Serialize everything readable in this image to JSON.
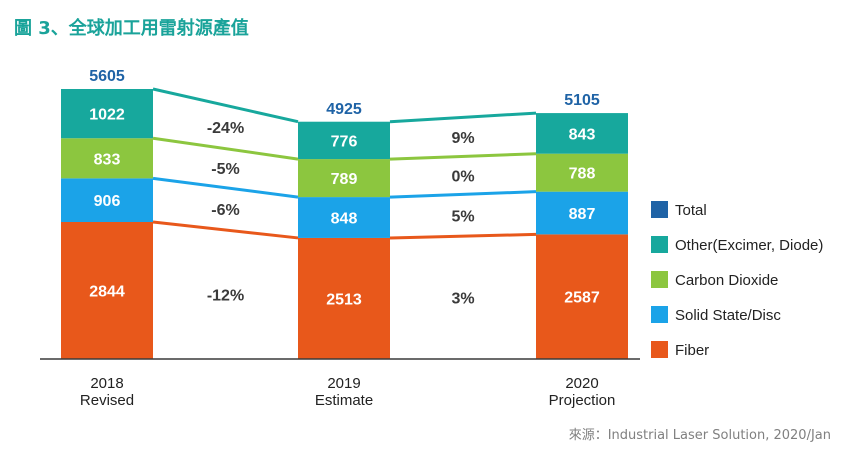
{
  "figure_title": "圖 3、全球加工用雷射源產值",
  "source": "來源：Industrial Laser Solution, 2020/Jan",
  "colors": {
    "title": "#1aa39a",
    "total_label": "#1f63a6",
    "segment_text": "#ffffff",
    "growth_text": "#3a3a3a",
    "axis": "#3a3a3a"
  },
  "chart_data": {
    "type": "bar",
    "stacked": true,
    "categories": [
      [
        "2018",
        "Revised"
      ],
      [
        "2019",
        "Estimate"
      ],
      [
        "2020",
        "Projection"
      ]
    ],
    "series": [
      {
        "name": "Fiber",
        "color": "#e8581b",
        "values": [
          2844,
          2513,
          2587
        ]
      },
      {
        "name": "Solid State/Disc",
        "color": "#1ba3e8",
        "values": [
          906,
          848,
          887
        ]
      },
      {
        "name": "Carbon Dioxide",
        "color": "#8cc63f",
        "values": [
          833,
          789,
          788
        ]
      },
      {
        "name": "Other(Excimer, Diode)",
        "color": "#17a89d",
        "values": [
          1022,
          776,
          843
        ]
      }
    ],
    "totals": {
      "name": "Total",
      "color": "#1f63a6",
      "values": [
        5605,
        4925,
        5105
      ]
    },
    "legend_order": [
      "Total",
      "Other(Excimer, Diode)",
      "Carbon Dioxide",
      "Solid State/Disc",
      "Fiber"
    ],
    "legend_position": "right",
    "growth": [
      {
        "series": "Other(Excimer, Diode)",
        "values": [
          "-24%",
          "9%"
        ]
      },
      {
        "series": "Carbon Dioxide",
        "values": [
          "-5%",
          "0%"
        ]
      },
      {
        "series": "Solid State/Disc",
        "values": [
          "-6%",
          "5%"
        ]
      },
      {
        "series": "Fiber",
        "values": [
          "-12%",
          "3%"
        ]
      }
    ],
    "ylim": [
      0,
      5605
    ],
    "grid": false
  }
}
